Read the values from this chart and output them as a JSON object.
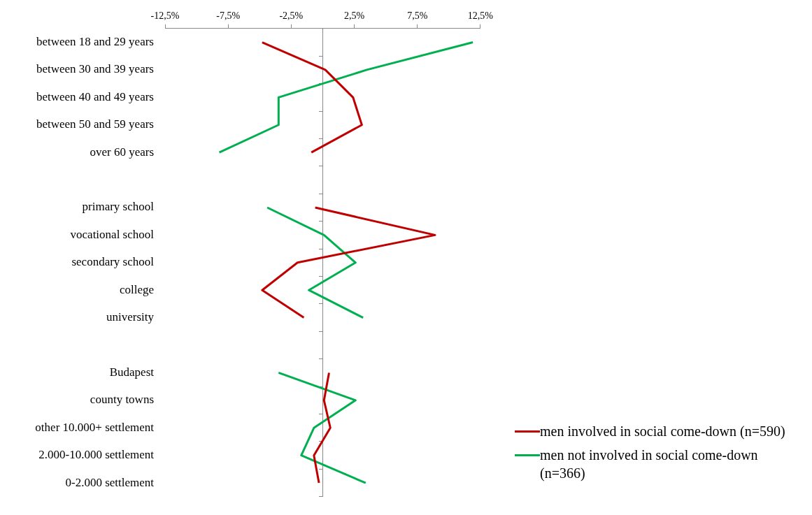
{
  "chart_data": {
    "type": "line",
    "orientation": "horizontal",
    "marker": "none",
    "legend": "bottom right",
    "grid": false,
    "categories": [
      "between 18 and 29 years",
      "between 30 and 39 years",
      "between 40 and 49 years",
      "between 50 and 59 years",
      "over 60 years",
      null,
      "primary school",
      "vocational school",
      "secondary school",
      "college",
      "university",
      null,
      "Budapest",
      "county towns",
      "other 10.000+ settlement",
      "2.000-10.000 settlement",
      "0-2.000 settlement"
    ],
    "xlim": [
      -12.5,
      12.5
    ],
    "xticks": [
      {
        "value": -12.5,
        "label": "-12,5%"
      },
      {
        "value": -7.5,
        "label": "-7,5%"
      },
      {
        "value": -2.5,
        "label": "-2,5%"
      },
      {
        "value": 2.5,
        "label": "2,5%"
      },
      {
        "value": 7.5,
        "label": "7,5%"
      },
      {
        "value": 12.5,
        "label": "12,5%"
      }
    ],
    "series": [
      {
        "name": "men involved in social come-down (n=590)",
        "color": "#c00000",
        "values": [
          -4.8,
          0.2,
          2.4,
          3.1,
          -0.9,
          null,
          -0.6,
          8.9,
          -2.0,
          -4.8,
          -1.5,
          null,
          0.5,
          0.1,
          0.6,
          -0.7,
          -0.3
        ]
      },
      {
        "name": "men not involved in social come-down (n=366)",
        "color": "#00b050",
        "values": [
          11.9,
          3.5,
          -3.5,
          -3.5,
          -8.2,
          null,
          -4.4,
          0.1,
          2.6,
          -1.1,
          3.2,
          null,
          -3.5,
          2.6,
          -0.7,
          -1.7,
          3.4
        ]
      }
    ]
  }
}
